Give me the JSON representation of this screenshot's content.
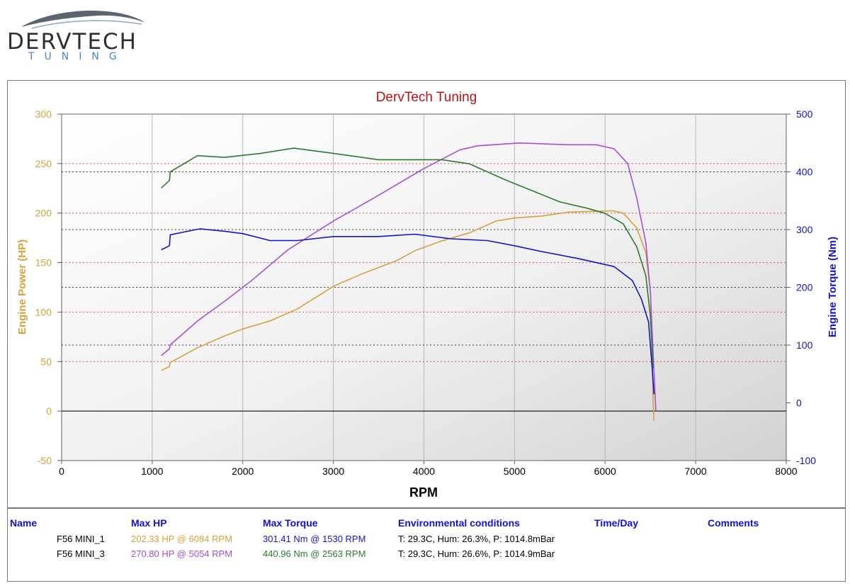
{
  "logo": {
    "name": "DERVTECH",
    "sub": "TUNING"
  },
  "chart_data": {
    "type": "line",
    "title": "DervTech Tuning",
    "xlabel": "RPM",
    "ylabel": "Engine Power (HP)",
    "y2label": "Engine Torque (Nm)",
    "xlim": [
      0,
      8000
    ],
    "ylim": [
      -50,
      300
    ],
    "y2lim": [
      -100,
      500
    ],
    "xticks": [
      0,
      1000,
      2000,
      3000,
      4000,
      5000,
      6000,
      7000,
      8000
    ],
    "yticks": [
      -50,
      0,
      50,
      100,
      150,
      200,
      250,
      300
    ],
    "y2ticks": [
      -100,
      0,
      100,
      200,
      300,
      400,
      500
    ],
    "colors": {
      "hp1": "#d4a33a",
      "hp3": "#a64fd8",
      "tq1": "#1515c8",
      "tq3": "#2e7a2e",
      "title": "#c01010",
      "leftAxis": "#d4a33a",
      "rightAxis": "#1515c8"
    },
    "series": [
      {
        "name": "F56 MINI_1 HP",
        "axis": "left",
        "color": "#d4a33a",
        "x": [
          1100,
          1190,
          1200,
          1500,
          1800,
          2000,
          2300,
          2600,
          3000,
          3300,
          3700,
          3900,
          4200,
          4500,
          4800,
          5000,
          5300,
          5600,
          6084,
          6200,
          6350,
          6450,
          6500,
          6520,
          6530,
          6540
        ],
        "y": [
          41,
          45,
          49,
          64,
          76,
          83,
          91,
          103,
          126,
          138,
          152,
          162,
          172,
          180,
          192,
          195,
          197,
          201,
          202.3,
          200,
          185,
          160,
          120,
          60,
          10,
          -10
        ]
      },
      {
        "name": "F56 MINI_3 HP",
        "axis": "left",
        "color": "#a64fd8",
        "x": [
          1100,
          1190,
          1200,
          1500,
          1800,
          2100,
          2500,
          3000,
          3500,
          4000,
          4400,
          4600,
          5054,
          5300,
          5600,
          5900,
          6100,
          6250,
          6350,
          6450,
          6500,
          6530,
          6550,
          6560
        ],
        "y": [
          56,
          63,
          67,
          91,
          111,
          132,
          163,
          192,
          218,
          245,
          264,
          268,
          270.8,
          270,
          269,
          269,
          265,
          250,
          215,
          170,
          120,
          60,
          20,
          0
        ]
      },
      {
        "name": "F56 MINI_1 Torque",
        "axis": "right",
        "color": "#1515c8",
        "x": [
          1100,
          1190,
          1200,
          1530,
          1800,
          2000,
          2300,
          2600,
          3000,
          3500,
          3900,
          4300,
          4700,
          5000,
          5300,
          5700,
          6100,
          6300,
          6400,
          6480,
          6520,
          6540
        ],
        "y": [
          265,
          272,
          291,
          301.4,
          297,
          293,
          281,
          281,
          288,
          288,
          292,
          284,
          281,
          272,
          262,
          250,
          236,
          212,
          180,
          140,
          60,
          15
        ]
      },
      {
        "name": "F56 MINI_3 Torque",
        "axis": "right",
        "color": "#2e7a2e",
        "x": [
          1100,
          1190,
          1200,
          1500,
          1800,
          2200,
          2563,
          3000,
          3500,
          4000,
          4200,
          4500,
          4900,
          5200,
          5500,
          5800,
          6000,
          6200,
          6350,
          6450,
          6500,
          6530
        ],
        "y": [
          372,
          385,
          400,
          428,
          425,
          432,
          440.96,
          432,
          421,
          421,
          421,
          414,
          386,
          367,
          348,
          337,
          328,
          310,
          270,
          220,
          150,
          60
        ]
      }
    ]
  },
  "table": {
    "headers": {
      "name": "Name",
      "maxhp": "Max HP",
      "maxtorque": "Max Torque",
      "env": "Environmental conditions",
      "time": "Time/Day",
      "comments": "Comments"
    },
    "rows": [
      {
        "name": "F56 MINI_1",
        "maxhp": "202.33 HP @ 6084 RPM",
        "maxtorque": "301.41 Nm @ 1530 RPM",
        "env": "T: 29.3C, Hum: 26.3%, P: 1014.8mBar"
      },
      {
        "name": "F56 MINI_3",
        "maxhp": "270.80 HP @ 5054 RPM",
        "maxtorque": "440.96 Nm @ 2563 RPM",
        "env": "T: 29.3C, Hum: 26.6%, P: 1014.9mBar"
      }
    ]
  }
}
